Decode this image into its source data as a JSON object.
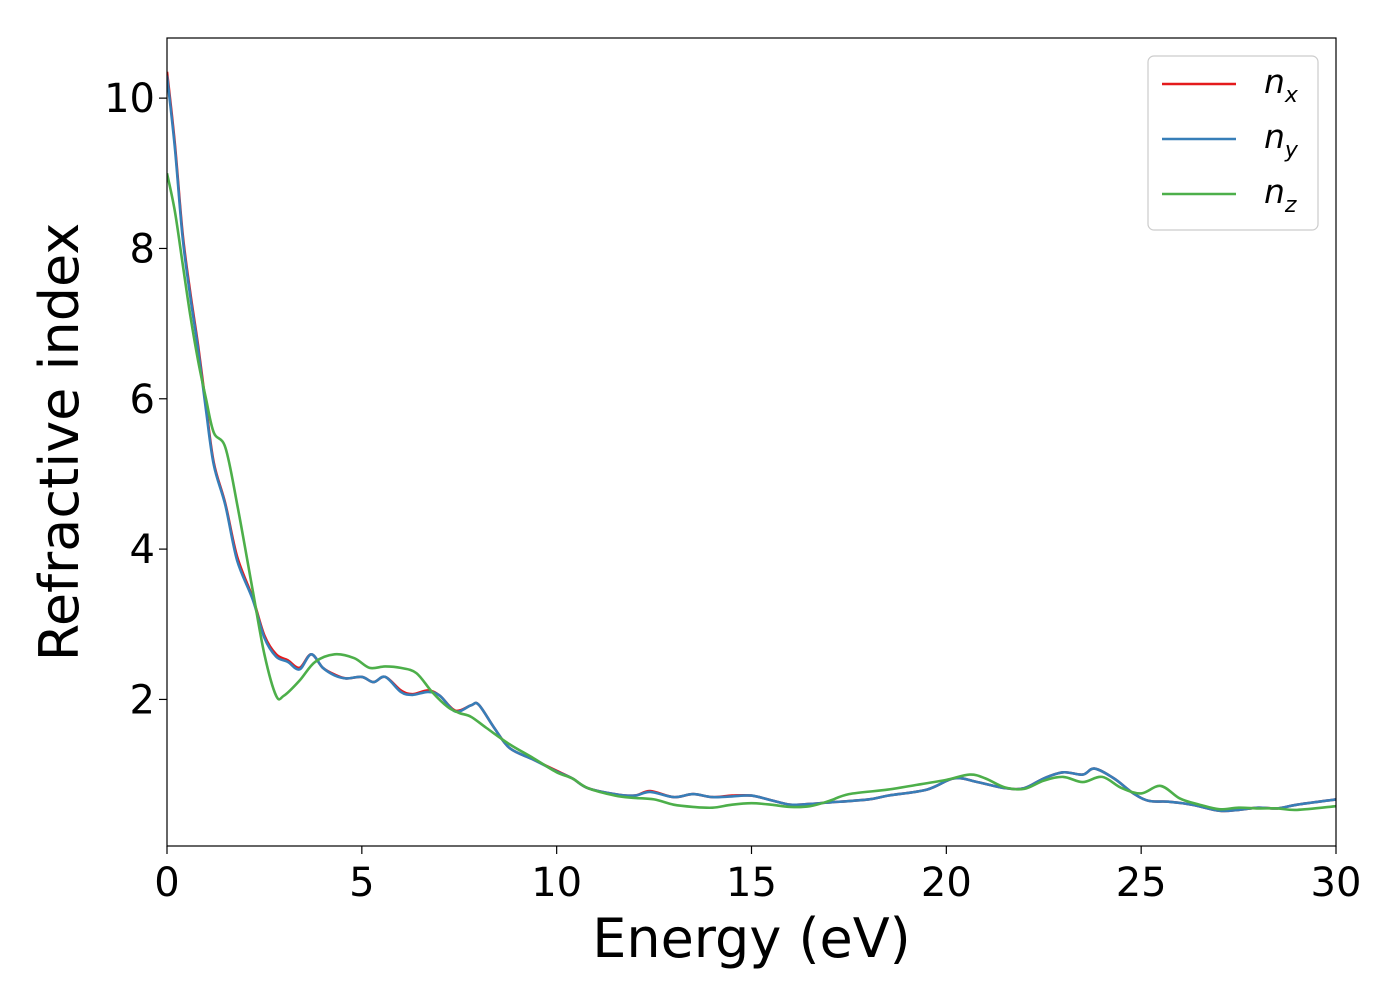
{
  "chart_data": {
    "type": "line",
    "xlabel": "Energy (eV)",
    "ylabel": "Refractive index",
    "xlim": [
      0,
      30
    ],
    "ylim": [
      0.05,
      10.8
    ],
    "x_ticks": [
      0,
      5,
      10,
      15,
      20,
      25,
      30
    ],
    "y_ticks": [
      2,
      4,
      6,
      8,
      10
    ],
    "grid": false,
    "legend_position": "top-right",
    "series": [
      {
        "name": "n",
        "subscript": "x",
        "color": "#e41a1c",
        "points": [
          [
            0,
            10.35
          ],
          [
            0.2,
            9.4
          ],
          [
            0.4,
            8.2
          ],
          [
            0.6,
            7.4
          ],
          [
            0.8,
            6.7
          ],
          [
            1.0,
            5.9
          ],
          [
            1.2,
            5.15
          ],
          [
            1.5,
            4.6
          ],
          [
            1.8,
            3.9
          ],
          [
            2.2,
            3.35
          ],
          [
            2.5,
            2.85
          ],
          [
            2.8,
            2.6
          ],
          [
            3.1,
            2.52
          ],
          [
            3.4,
            2.42
          ],
          [
            3.7,
            2.6
          ],
          [
            4.0,
            2.42
          ],
          [
            4.3,
            2.33
          ],
          [
            4.6,
            2.28
          ],
          [
            5.0,
            2.3
          ],
          [
            5.3,
            2.23
          ],
          [
            5.6,
            2.3
          ],
          [
            6.0,
            2.12
          ],
          [
            6.3,
            2.07
          ],
          [
            6.7,
            2.12
          ],
          [
            7.0,
            2.05
          ],
          [
            7.4,
            1.85
          ],
          [
            7.8,
            1.92
          ],
          [
            8.0,
            1.93
          ],
          [
            8.4,
            1.62
          ],
          [
            8.8,
            1.35
          ],
          [
            9.4,
            1.2
          ],
          [
            10.0,
            1.05
          ],
          [
            10.4,
            0.95
          ],
          [
            10.8,
            0.82
          ],
          [
            11.5,
            0.74
          ],
          [
            12.0,
            0.72
          ],
          [
            12.4,
            0.78
          ],
          [
            13.0,
            0.7
          ],
          [
            13.5,
            0.74
          ],
          [
            14.0,
            0.7
          ],
          [
            14.5,
            0.72
          ],
          [
            15.0,
            0.72
          ],
          [
            15.5,
            0.66
          ],
          [
            16.0,
            0.6
          ],
          [
            16.5,
            0.61
          ],
          [
            17.0,
            0.63
          ],
          [
            18.0,
            0.67
          ],
          [
            18.5,
            0.72
          ],
          [
            19.5,
            0.8
          ],
          [
            20.2,
            0.95
          ],
          [
            20.8,
            0.9
          ],
          [
            21.5,
            0.82
          ],
          [
            22.0,
            0.82
          ],
          [
            22.5,
            0.95
          ],
          [
            23.0,
            1.03
          ],
          [
            23.5,
            1.0
          ],
          [
            23.8,
            1.08
          ],
          [
            24.3,
            0.95
          ],
          [
            24.8,
            0.75
          ],
          [
            25.2,
            0.65
          ],
          [
            25.7,
            0.64
          ],
          [
            26.3,
            0.6
          ],
          [
            27.0,
            0.52
          ],
          [
            27.5,
            0.53
          ],
          [
            28.0,
            0.56
          ],
          [
            28.5,
            0.55
          ],
          [
            29.0,
            0.6
          ],
          [
            30.0,
            0.67
          ]
        ]
      },
      {
        "name": "n",
        "subscript": "y",
        "color": "#377eb8",
        "points": [
          [
            0,
            10.3
          ],
          [
            0.2,
            9.35
          ],
          [
            0.4,
            8.15
          ],
          [
            0.6,
            7.35
          ],
          [
            0.8,
            6.65
          ],
          [
            1.0,
            5.85
          ],
          [
            1.2,
            5.12
          ],
          [
            1.5,
            4.58
          ],
          [
            1.8,
            3.85
          ],
          [
            2.2,
            3.33
          ],
          [
            2.5,
            2.82
          ],
          [
            2.8,
            2.57
          ],
          [
            3.1,
            2.5
          ],
          [
            3.4,
            2.4
          ],
          [
            3.7,
            2.6
          ],
          [
            4.0,
            2.42
          ],
          [
            4.3,
            2.32
          ],
          [
            4.6,
            2.28
          ],
          [
            5.0,
            2.3
          ],
          [
            5.3,
            2.23
          ],
          [
            5.6,
            2.3
          ],
          [
            6.0,
            2.1
          ],
          [
            6.3,
            2.06
          ],
          [
            6.7,
            2.1
          ],
          [
            7.0,
            2.05
          ],
          [
            7.4,
            1.84
          ],
          [
            7.8,
            1.92
          ],
          [
            8.0,
            1.93
          ],
          [
            8.4,
            1.62
          ],
          [
            8.8,
            1.35
          ],
          [
            9.4,
            1.2
          ],
          [
            10.0,
            1.04
          ],
          [
            10.4,
            0.95
          ],
          [
            10.8,
            0.82
          ],
          [
            11.5,
            0.74
          ],
          [
            12.0,
            0.72
          ],
          [
            12.4,
            0.77
          ],
          [
            13.0,
            0.7
          ],
          [
            13.5,
            0.74
          ],
          [
            14.0,
            0.7
          ],
          [
            14.5,
            0.71
          ],
          [
            15.0,
            0.72
          ],
          [
            15.5,
            0.66
          ],
          [
            16.0,
            0.6
          ],
          [
            16.5,
            0.61
          ],
          [
            17.0,
            0.63
          ],
          [
            18.0,
            0.67
          ],
          [
            18.5,
            0.72
          ],
          [
            19.5,
            0.8
          ],
          [
            20.2,
            0.95
          ],
          [
            20.8,
            0.9
          ],
          [
            21.5,
            0.82
          ],
          [
            22.0,
            0.82
          ],
          [
            22.5,
            0.95
          ],
          [
            23.0,
            1.03
          ],
          [
            23.5,
            1.0
          ],
          [
            23.8,
            1.08
          ],
          [
            24.3,
            0.95
          ],
          [
            24.8,
            0.75
          ],
          [
            25.2,
            0.65
          ],
          [
            25.7,
            0.64
          ],
          [
            26.3,
            0.6
          ],
          [
            27.0,
            0.52
          ],
          [
            27.5,
            0.53
          ],
          [
            28.0,
            0.56
          ],
          [
            28.5,
            0.55
          ],
          [
            29.0,
            0.6
          ],
          [
            30.0,
            0.67
          ]
        ]
      },
      {
        "name": "n",
        "subscript": "z",
        "color": "#4daf4a",
        "points": [
          [
            0,
            9.0
          ],
          [
            0.2,
            8.5
          ],
          [
            0.4,
            7.8
          ],
          [
            0.6,
            7.1
          ],
          [
            0.8,
            6.5
          ],
          [
            1.0,
            6.0
          ],
          [
            1.2,
            5.55
          ],
          [
            1.5,
            5.35
          ],
          [
            1.8,
            4.6
          ],
          [
            2.2,
            3.45
          ],
          [
            2.5,
            2.6
          ],
          [
            2.8,
            2.05
          ],
          [
            3.0,
            2.05
          ],
          [
            3.4,
            2.25
          ],
          [
            3.8,
            2.5
          ],
          [
            4.3,
            2.6
          ],
          [
            4.8,
            2.55
          ],
          [
            5.2,
            2.42
          ],
          [
            5.6,
            2.44
          ],
          [
            6.0,
            2.42
          ],
          [
            6.4,
            2.35
          ],
          [
            6.8,
            2.1
          ],
          [
            7.2,
            1.9
          ],
          [
            7.5,
            1.82
          ],
          [
            7.8,
            1.77
          ],
          [
            8.2,
            1.62
          ],
          [
            8.8,
            1.4
          ],
          [
            9.4,
            1.22
          ],
          [
            10.0,
            1.03
          ],
          [
            10.4,
            0.95
          ],
          [
            10.8,
            0.82
          ],
          [
            11.5,
            0.72
          ],
          [
            12.0,
            0.69
          ],
          [
            12.5,
            0.67
          ],
          [
            13.0,
            0.6
          ],
          [
            13.5,
            0.57
          ],
          [
            14.0,
            0.56
          ],
          [
            14.5,
            0.6
          ],
          [
            15.0,
            0.62
          ],
          [
            15.5,
            0.6
          ],
          [
            16.0,
            0.57
          ],
          [
            16.5,
            0.58
          ],
          [
            17.0,
            0.65
          ],
          [
            17.5,
            0.74
          ],
          [
            18.5,
            0.8
          ],
          [
            19.2,
            0.86
          ],
          [
            20.0,
            0.93
          ],
          [
            20.6,
            1.0
          ],
          [
            21.0,
            0.95
          ],
          [
            21.5,
            0.83
          ],
          [
            22.0,
            0.81
          ],
          [
            22.5,
            0.92
          ],
          [
            23.0,
            0.97
          ],
          [
            23.5,
            0.9
          ],
          [
            24.0,
            0.97
          ],
          [
            24.5,
            0.82
          ],
          [
            25.0,
            0.75
          ],
          [
            25.5,
            0.85
          ],
          [
            26.0,
            0.68
          ],
          [
            26.5,
            0.6
          ],
          [
            27.0,
            0.54
          ],
          [
            27.5,
            0.56
          ],
          [
            28.0,
            0.55
          ],
          [
            28.5,
            0.55
          ],
          [
            29.0,
            0.53
          ],
          [
            30.0,
            0.58
          ]
        ]
      }
    ]
  }
}
